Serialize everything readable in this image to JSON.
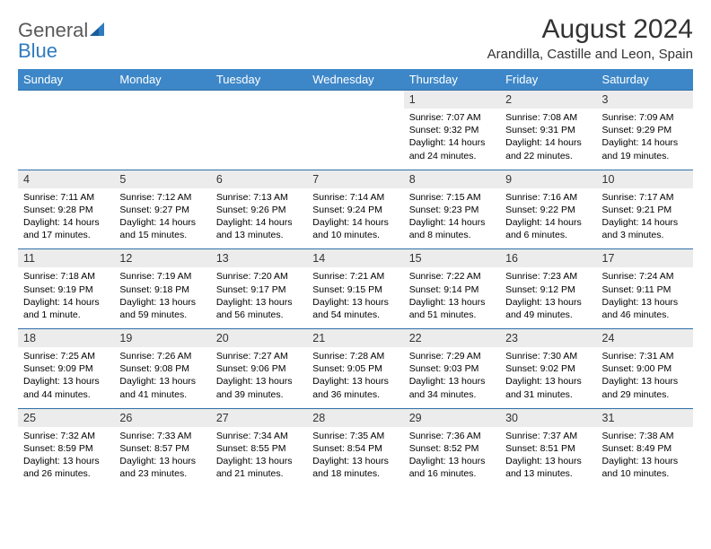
{
  "brand": {
    "general": "General",
    "blue": "Blue"
  },
  "title": "August 2024",
  "location": "Arandilla, Castille and Leon, Spain",
  "colors": {
    "header_bg": "#3d87c8",
    "header_text": "#ffffff",
    "daynum_bg": "#ececec",
    "week_border": "#2f6ea8",
    "logo_gray": "#5a5a5a",
    "logo_blue": "#2f7bbf",
    "page_bg": "#ffffff"
  },
  "typography": {
    "title_fontsize": 30,
    "location_fontsize": 15,
    "header_fontsize": 13,
    "daynum_fontsize": 12.5,
    "dayinfo_fontsize": 10.5
  },
  "day_headers": [
    "Sunday",
    "Monday",
    "Tuesday",
    "Wednesday",
    "Thursday",
    "Friday",
    "Saturday"
  ],
  "weeks": [
    [
      null,
      null,
      null,
      null,
      {
        "n": "1",
        "sunrise": "7:07 AM",
        "sunset": "9:32 PM",
        "daylight": "14 hours and 24 minutes."
      },
      {
        "n": "2",
        "sunrise": "7:08 AM",
        "sunset": "9:31 PM",
        "daylight": "14 hours and 22 minutes."
      },
      {
        "n": "3",
        "sunrise": "7:09 AM",
        "sunset": "9:29 PM",
        "daylight": "14 hours and 19 minutes."
      }
    ],
    [
      {
        "n": "4",
        "sunrise": "7:11 AM",
        "sunset": "9:28 PM",
        "daylight": "14 hours and 17 minutes."
      },
      {
        "n": "5",
        "sunrise": "7:12 AM",
        "sunset": "9:27 PM",
        "daylight": "14 hours and 15 minutes."
      },
      {
        "n": "6",
        "sunrise": "7:13 AM",
        "sunset": "9:26 PM",
        "daylight": "14 hours and 13 minutes."
      },
      {
        "n": "7",
        "sunrise": "7:14 AM",
        "sunset": "9:24 PM",
        "daylight": "14 hours and 10 minutes."
      },
      {
        "n": "8",
        "sunrise": "7:15 AM",
        "sunset": "9:23 PM",
        "daylight": "14 hours and 8 minutes."
      },
      {
        "n": "9",
        "sunrise": "7:16 AM",
        "sunset": "9:22 PM",
        "daylight": "14 hours and 6 minutes."
      },
      {
        "n": "10",
        "sunrise": "7:17 AM",
        "sunset": "9:21 PM",
        "daylight": "14 hours and 3 minutes."
      }
    ],
    [
      {
        "n": "11",
        "sunrise": "7:18 AM",
        "sunset": "9:19 PM",
        "daylight": "14 hours and 1 minute."
      },
      {
        "n": "12",
        "sunrise": "7:19 AM",
        "sunset": "9:18 PM",
        "daylight": "13 hours and 59 minutes."
      },
      {
        "n": "13",
        "sunrise": "7:20 AM",
        "sunset": "9:17 PM",
        "daylight": "13 hours and 56 minutes."
      },
      {
        "n": "14",
        "sunrise": "7:21 AM",
        "sunset": "9:15 PM",
        "daylight": "13 hours and 54 minutes."
      },
      {
        "n": "15",
        "sunrise": "7:22 AM",
        "sunset": "9:14 PM",
        "daylight": "13 hours and 51 minutes."
      },
      {
        "n": "16",
        "sunrise": "7:23 AM",
        "sunset": "9:12 PM",
        "daylight": "13 hours and 49 minutes."
      },
      {
        "n": "17",
        "sunrise": "7:24 AM",
        "sunset": "9:11 PM",
        "daylight": "13 hours and 46 minutes."
      }
    ],
    [
      {
        "n": "18",
        "sunrise": "7:25 AM",
        "sunset": "9:09 PM",
        "daylight": "13 hours and 44 minutes."
      },
      {
        "n": "19",
        "sunrise": "7:26 AM",
        "sunset": "9:08 PM",
        "daylight": "13 hours and 41 minutes."
      },
      {
        "n": "20",
        "sunrise": "7:27 AM",
        "sunset": "9:06 PM",
        "daylight": "13 hours and 39 minutes."
      },
      {
        "n": "21",
        "sunrise": "7:28 AM",
        "sunset": "9:05 PM",
        "daylight": "13 hours and 36 minutes."
      },
      {
        "n": "22",
        "sunrise": "7:29 AM",
        "sunset": "9:03 PM",
        "daylight": "13 hours and 34 minutes."
      },
      {
        "n": "23",
        "sunrise": "7:30 AM",
        "sunset": "9:02 PM",
        "daylight": "13 hours and 31 minutes."
      },
      {
        "n": "24",
        "sunrise": "7:31 AM",
        "sunset": "9:00 PM",
        "daylight": "13 hours and 29 minutes."
      }
    ],
    [
      {
        "n": "25",
        "sunrise": "7:32 AM",
        "sunset": "8:59 PM",
        "daylight": "13 hours and 26 minutes."
      },
      {
        "n": "26",
        "sunrise": "7:33 AM",
        "sunset": "8:57 PM",
        "daylight": "13 hours and 23 minutes."
      },
      {
        "n": "27",
        "sunrise": "7:34 AM",
        "sunset": "8:55 PM",
        "daylight": "13 hours and 21 minutes."
      },
      {
        "n": "28",
        "sunrise": "7:35 AM",
        "sunset": "8:54 PM",
        "daylight": "13 hours and 18 minutes."
      },
      {
        "n": "29",
        "sunrise": "7:36 AM",
        "sunset": "8:52 PM",
        "daylight": "13 hours and 16 minutes."
      },
      {
        "n": "30",
        "sunrise": "7:37 AM",
        "sunset": "8:51 PM",
        "daylight": "13 hours and 13 minutes."
      },
      {
        "n": "31",
        "sunrise": "7:38 AM",
        "sunset": "8:49 PM",
        "daylight": "13 hours and 10 minutes."
      }
    ]
  ],
  "labels": {
    "sunrise": "Sunrise: ",
    "sunset": "Sunset: ",
    "daylight": "Daylight: "
  }
}
